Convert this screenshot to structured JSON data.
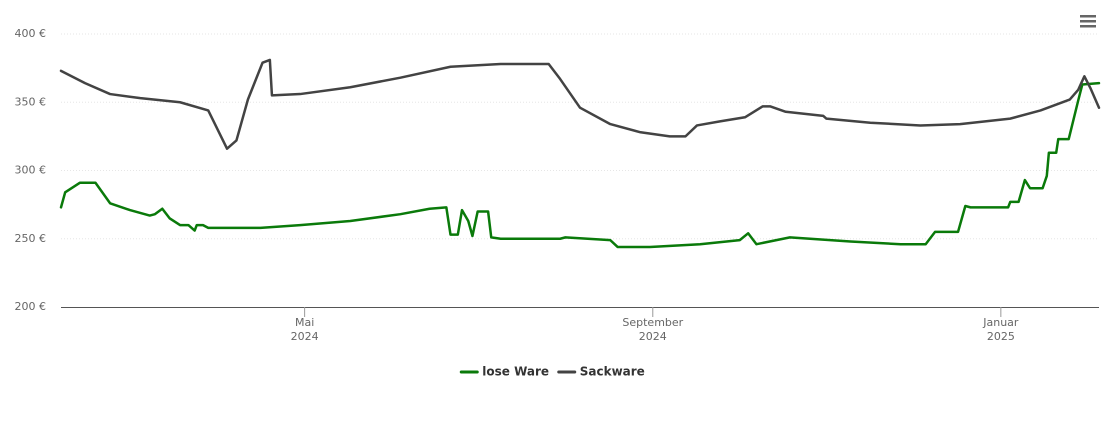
{
  "chart_data": {
    "type": "line",
    "xlim": [
      2024.1,
      2025.094
    ],
    "xticks": [
      {
        "value": 2024.3333,
        "label": [
          "Mai",
          "2024"
        ]
      },
      {
        "value": 2024.6667,
        "label": [
          "September",
          "2024"
        ]
      },
      {
        "value": 2025.0,
        "label": [
          "Januar",
          "2025"
        ]
      }
    ],
    "ylim": [
      200,
      400
    ],
    "yticks": [
      {
        "value": 200,
        "label": "200 €"
      },
      {
        "value": 250,
        "label": "250 €"
      },
      {
        "value": 300,
        "label": "300 €"
      },
      {
        "value": 350,
        "label": "350 €"
      },
      {
        "value": 400,
        "label": "400 €"
      }
    ],
    "grid": true,
    "legend": "bottom",
    "series": [
      {
        "name": "lose Ware",
        "color": "#0a7a0a",
        "x": [
          2024.1,
          2024.104,
          2024.118,
          2024.133,
          2024.147,
          2024.166,
          2024.185,
          2024.19,
          2024.197,
          2024.204,
          2024.214,
          2024.222,
          2024.228,
          2024.23,
          2024.236,
          2024.241,
          2024.291,
          2024.329,
          2024.377,
          2024.425,
          2024.453,
          2024.469,
          2024.473,
          2024.48,
          2024.484,
          2024.49,
          2024.494,
          2024.499,
          2024.509,
          2024.512,
          2024.521,
          2024.578,
          2024.583,
          2024.626,
          2024.633,
          2024.664,
          2024.712,
          2024.75,
          2024.758,
          2024.766,
          2024.798,
          2024.856,
          2024.904,
          2024.928,
          2024.937,
          2024.959,
          2024.966,
          2024.971,
          2025.007,
          2025.009,
          2025.017,
          2025.023,
          2025.028,
          2025.04,
          2025.044,
          2025.046,
          2025.053,
          2025.055,
          2025.065,
          2025.074,
          2025.078,
          2025.094
        ],
        "values": [
          273,
          284,
          291,
          291,
          276,
          271,
          267,
          268,
          272,
          265,
          260,
          260,
          256,
          260,
          260,
          258,
          258,
          260,
          263,
          268,
          272,
          273,
          253,
          253,
          271,
          263,
          252,
          270,
          270,
          251,
          250,
          250,
          251,
          249,
          244,
          244,
          246,
          249,
          254,
          246,
          251,
          248,
          246,
          246,
          255,
          255,
          274,
          273,
          273,
          277,
          277,
          293,
          287,
          287,
          296,
          313,
          313,
          323,
          323,
          351,
          363,
          364
        ]
      },
      {
        "name": "Sackware",
        "color": "#434343",
        "x": [
          2024.1,
          2024.123,
          2024.147,
          2024.176,
          2024.214,
          2024.241,
          2024.25,
          2024.259,
          2024.268,
          2024.279,
          2024.293,
          2024.3,
          2024.302,
          2024.329,
          2024.377,
          2024.425,
          2024.473,
          2024.521,
          2024.567,
          2024.578,
          2024.597,
          2024.626,
          2024.655,
          2024.683,
          2024.698,
          2024.709,
          2024.731,
          2024.755,
          2024.772,
          2024.779,
          2024.794,
          2024.83,
          2024.833,
          2024.875,
          2024.923,
          2024.961,
          2025.009,
          2025.038,
          2025.066,
          2025.074,
          2025.08,
          2025.086,
          2025.094
        ],
        "values": [
          373,
          364,
          356,
          353,
          350,
          344,
          330,
          316,
          322,
          352,
          379,
          381,
          355,
          356,
          361,
          368,
          376,
          378,
          378,
          367,
          346,
          334,
          328,
          325,
          325,
          333,
          336,
          339,
          347,
          347,
          343,
          340,
          338,
          335,
          333,
          334,
          338,
          344,
          352,
          359,
          369,
          360,
          346
        ]
      }
    ]
  }
}
